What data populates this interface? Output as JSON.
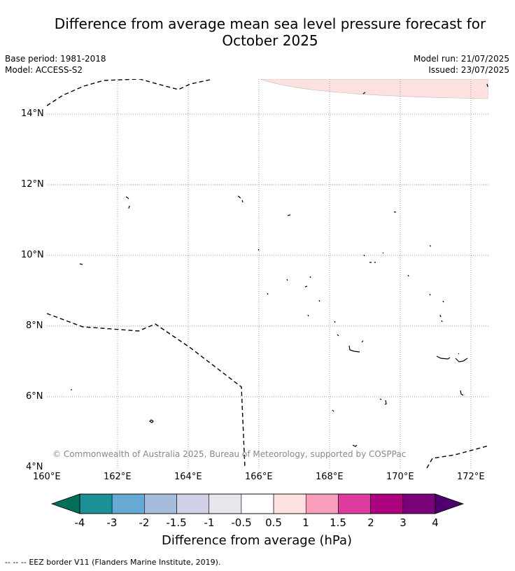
{
  "header": {
    "title_line1": "Difference from average mean sea level pressure forecast for",
    "title_line2": "October 2025",
    "base_period": "Base period: 1981-2018",
    "model": "Model: ACCESS-S2",
    "model_run": "Model run: 21/07/2025",
    "issued": "Issued: 23/07/2025"
  },
  "map": {
    "lon_labels": [
      "160°E",
      "162°E",
      "164°E",
      "166°E",
      "168°E",
      "170°E",
      "172°E"
    ],
    "lat_labels": [
      "14°N",
      "12°N",
      "10°N",
      "8°N",
      "6°N",
      "4°N"
    ],
    "copyright": "© Commonwealth of Australia 2025, Bureau of Meteorology, supported by COSPPac",
    "anomaly_area_color": "#fde0e0",
    "anomaly_area_category": "0.5 to 1"
  },
  "colorbar": {
    "title": "Difference from average (hPa)",
    "labels": [
      "-4",
      "-3",
      "-2",
      "-1.5",
      "-1",
      "-0.5",
      "0.5",
      "1",
      "1.5",
      "2",
      "3",
      "4"
    ],
    "colors": [
      "#1b9197",
      "#66aad3",
      "#a7bbdc",
      "#cfcfe8",
      "#e7e6ed",
      "#ffffff",
      "#fde0e0",
      "#f89eba",
      "#de3a9f",
      "#ad027e",
      "#7b0179"
    ],
    "low_extend_color": "#046d5c",
    "high_extend_color": "#4c006b"
  },
  "footer": {
    "legend_symbol": "--  --  --",
    "legend_text": "EEZ border V11 (Flanders Marine Institute, 2019)."
  }
}
